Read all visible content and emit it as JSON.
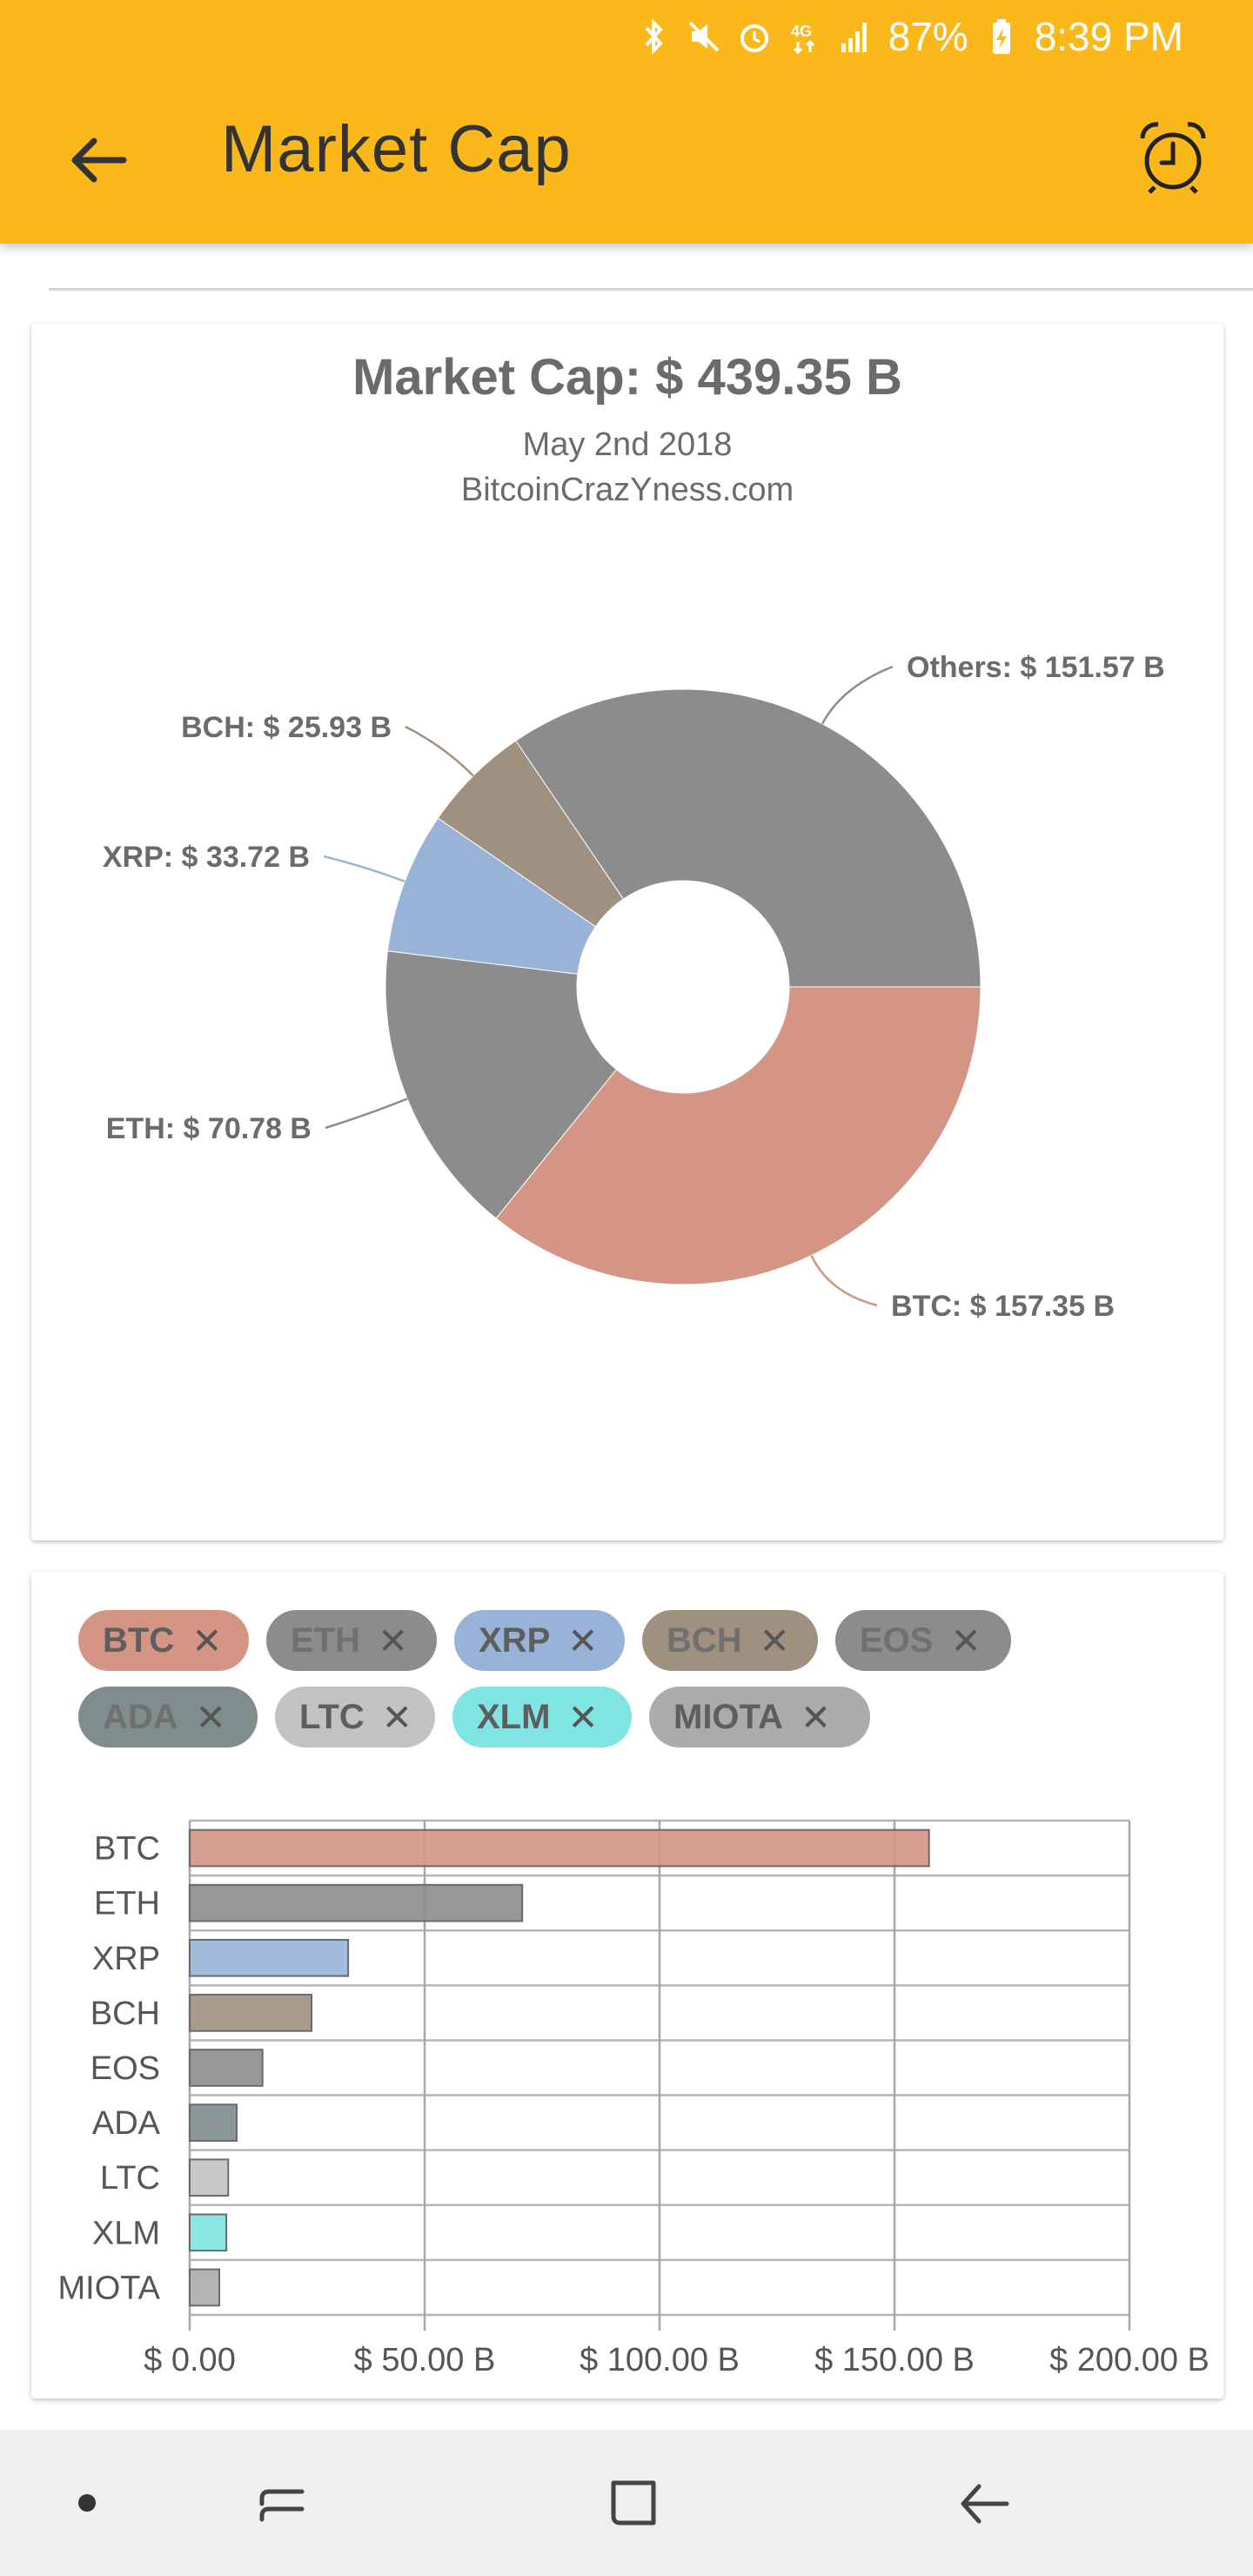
{
  "status_bar": {
    "battery": "87%",
    "time": "8:39 PM",
    "icons": [
      "bluetooth-icon",
      "mute-icon",
      "alarm-icon",
      "data-icon",
      "signal-icon",
      "battery-charging-icon"
    ]
  },
  "app_bar": {
    "title": "Market Cap",
    "back_icon": "arrow-back-icon",
    "action_icon": "alarm-clock-icon",
    "background": "#FBB81B"
  },
  "pie_chart_card": {
    "title": "Market Cap: $ 439.35 B",
    "subtitle_date": "May 2nd 2018",
    "subtitle_source": "BitcoinCrazYness.com"
  },
  "chip_filter": {
    "chips": [
      {
        "label": "BTC",
        "color": "#D49585",
        "active": true
      },
      {
        "label": "ETH",
        "color": "#8C8C8C",
        "active": false
      },
      {
        "label": "XRP",
        "color": "#98B2D8",
        "active": true
      },
      {
        "label": "BCH",
        "color": "#A0907F",
        "active": false
      },
      {
        "label": "EOS",
        "color": "#8C8C8C",
        "active": false
      },
      {
        "label": "ADA",
        "color": "#7F8D8D",
        "active": false
      },
      {
        "label": "LTC",
        "color": "#C2C2C2",
        "active": true
      },
      {
        "label": "XLM",
        "color": "#7FE4E2",
        "active": true
      },
      {
        "label": "MIOTA",
        "color": "#ABABAB",
        "active": true
      }
    ],
    "remove_icon": "close-icon"
  },
  "chart_data": [
    {
      "type": "pie",
      "title": "Market Cap: $ 439.35 B",
      "subtitle": [
        "May 2nd 2018",
        "BitcoinCrazYness.com"
      ],
      "donut": true,
      "slices": [
        {
          "name": "BTC",
          "label": "BTC: $ 157.35 B",
          "value": 157.35,
          "color": "#D49585"
        },
        {
          "name": "ETH",
          "label": "ETH: $ 70.78 B",
          "value": 70.78,
          "color": "#8C8C8C"
        },
        {
          "name": "XRP",
          "label": "XRP: $ 33.72 B",
          "value": 33.72,
          "color": "#98B2D8"
        },
        {
          "name": "BCH",
          "label": "BCH: $ 25.93 B",
          "value": 25.93,
          "color": "#A0907F"
        },
        {
          "name": "Others",
          "label": "Others: $ 151.57 B",
          "value": 151.57,
          "color": "#8C8C8C"
        }
      ]
    },
    {
      "type": "bar",
      "orientation": "horizontal",
      "categories": [
        "BTC",
        "ETH",
        "XRP",
        "BCH",
        "EOS",
        "ADA",
        "LTC",
        "XLM",
        "MIOTA"
      ],
      "values": [
        157.35,
        70.78,
        33.72,
        25.93,
        15.5,
        10.0,
        8.2,
        7.8,
        6.3
      ],
      "colors": [
        "#D49585",
        "#8C8C8C",
        "#98B2D8",
        "#A0907F",
        "#8C8C8C",
        "#7F8D8D",
        "#C2C2C2",
        "#7FE4E2",
        "#ABABAB"
      ],
      "xlim": [
        0,
        200
      ],
      "xticks": [
        0,
        50,
        100,
        150,
        200
      ],
      "xtick_labels": [
        "$ 0.00",
        "$ 50.00 B",
        "$ 100.00 B",
        "$ 150.00 B",
        "$ 200.00 B"
      ],
      "grid": true,
      "xlabel": "",
      "ylabel": ""
    }
  ],
  "nav_bar": {
    "icons": [
      "dot-icon",
      "recent-apps-icon",
      "home-icon",
      "back-nav-icon"
    ]
  }
}
